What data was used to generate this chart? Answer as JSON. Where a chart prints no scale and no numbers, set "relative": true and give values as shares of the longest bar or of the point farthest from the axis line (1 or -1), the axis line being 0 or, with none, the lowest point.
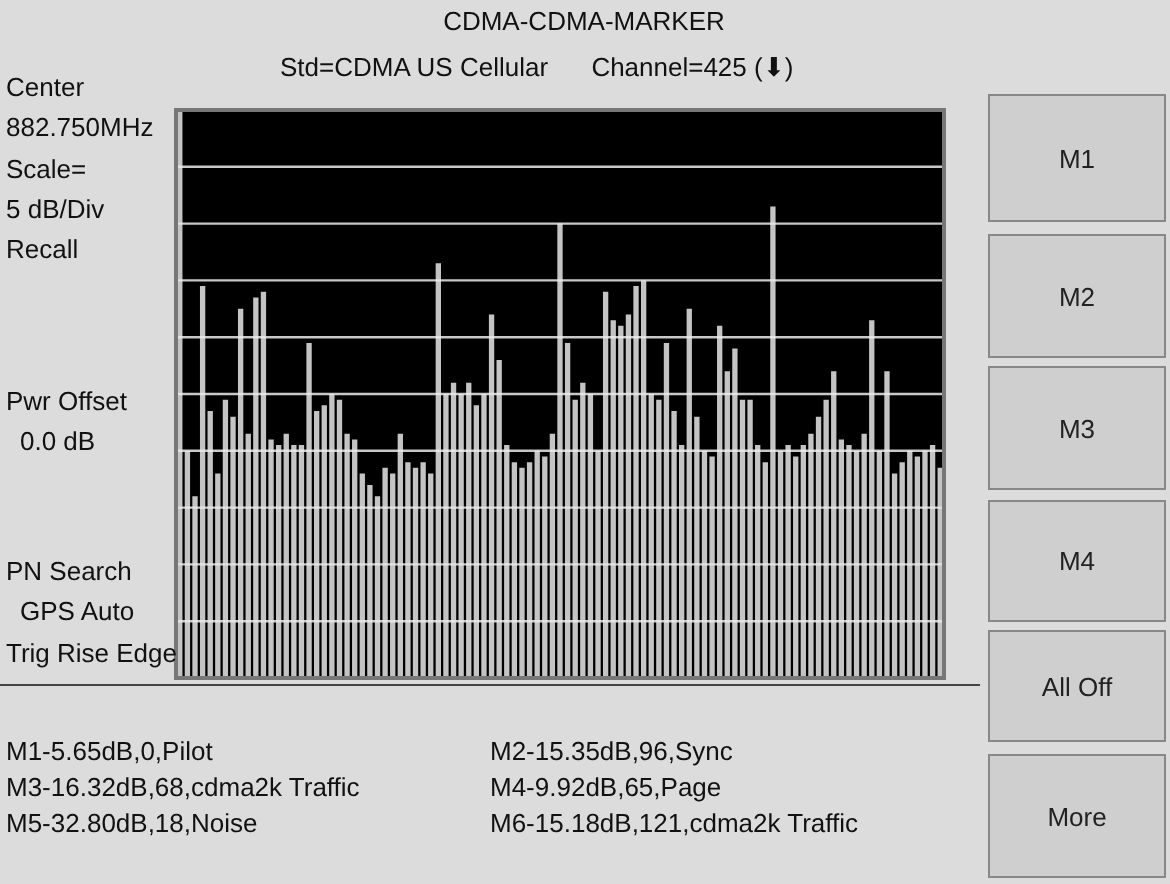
{
  "chart_data": {
    "type": "bar",
    "title": "CDMA-CDMA-MARKER",
    "subtitle": "Std=CDMA US Cellular      Channel=425 (⬇)",
    "categories": [
      null,
      null,
      null,
      null,
      null,
      null,
      null,
      null,
      null,
      null,
      null,
      null,
      null,
      null,
      null,
      null,
      null,
      null,
      null,
      null,
      null,
      null,
      null,
      null,
      null,
      null,
      null,
      null,
      null,
      null,
      null,
      null,
      null,
      null,
      null,
      null,
      null,
      null,
      null,
      null,
      null,
      null,
      null,
      null,
      null,
      null,
      null,
      null,
      null,
      null,
      null,
      null,
      null,
      null,
      null,
      null,
      null,
      null,
      null,
      null,
      null,
      null,
      null,
      null,
      null,
      null,
      null,
      null,
      null,
      null,
      null,
      null,
      null,
      null,
      null,
      null,
      null,
      null,
      null,
      null,
      null,
      null,
      null,
      null,
      null,
      null,
      null,
      null,
      null,
      null,
      null,
      null,
      null,
      null,
      null,
      null,
      null,
      null,
      null,
      null,
      null
    ],
    "values": [
      1.0,
      0.4,
      0.32,
      0.69,
      0.47,
      0.36,
      0.49,
      0.46,
      0.65,
      0.43,
      0.67,
      0.68,
      0.42,
      0.41,
      0.43,
      0.41,
      0.41,
      0.59,
      0.47,
      0.48,
      0.5,
      0.49,
      0.43,
      0.42,
      0.36,
      0.34,
      0.32,
      0.37,
      0.36,
      0.43,
      0.38,
      0.37,
      0.38,
      0.36,
      0.73,
      0.5,
      0.52,
      0.5,
      0.52,
      0.48,
      0.5,
      0.64,
      0.56,
      0.41,
      0.38,
      0.37,
      0.38,
      0.4,
      0.39,
      0.43,
      0.8,
      0.59,
      0.49,
      0.52,
      0.5,
      0.4,
      0.68,
      0.63,
      0.62,
      0.64,
      0.69,
      0.7,
      0.5,
      0.49,
      0.59,
      0.47,
      0.41,
      0.65,
      0.46,
      0.4,
      0.39,
      0.62,
      0.54,
      0.58,
      0.49,
      0.49,
      0.41,
      0.38,
      0.83,
      0.4,
      0.41,
      0.39,
      0.41,
      0.43,
      0.46,
      0.49,
      0.54,
      0.42,
      0.41,
      0.4,
      0.43,
      0.63,
      0.4,
      0.54,
      0.36,
      0.38,
      0.4,
      0.39,
      0.4,
      0.41,
      0.37
    ],
    "color": "#c4c4c4",
    "relative": true,
    "grid": true,
    "annotations": [
      "Center",
      "882.750MHz",
      "Scale=",
      "5 dB/Div",
      "Recall",
      "Pwr Offset",
      "0.0 dB",
      "PN Search",
      "GPS Auto",
      "Trig Rise Edge",
      "M1-5.65dB,0,Pilot",
      "M2-15.35dB,96,Sync",
      "M3-16.32dB,68,cdma2k Traffic",
      "M4-9.92dB,65,Page",
      "M5-32.80dB,18,Noise",
      "M6-15.18dB,121,cdma2k Traffic",
      "M1",
      "M2",
      "M3",
      "M4",
      "All Off",
      "More"
    ]
  }
}
